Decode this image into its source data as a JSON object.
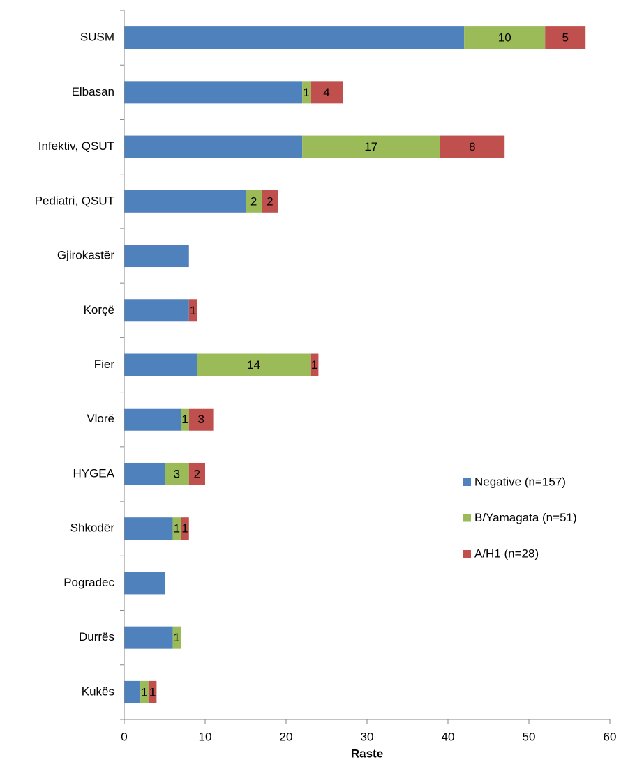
{
  "chart_data": {
    "type": "stacked_bar_horizontal",
    "x_label": "Raste",
    "categories": [
      "SUSM",
      "Elbasan",
      "Infektiv, QSUT",
      "Pediatri, QSUT",
      "Gjirokastër",
      "Korçë",
      "Fier",
      "Vlorë",
      "HYGEA",
      "Shkodër",
      "Pogradec",
      "Durrës",
      "Kukës"
    ],
    "series": [
      {
        "name": "Negative (n=157)",
        "color": "#4f81bd",
        "show_labels": false,
        "values": [
          42,
          22,
          22,
          15,
          8,
          8,
          9,
          7,
          5,
          6,
          5,
          6,
          2
        ]
      },
      {
        "name": "B/Yamagata (n=51)",
        "color": "#9bbb59",
        "show_labels": true,
        "values": [
          10,
          1,
          17,
          2,
          null,
          null,
          14,
          1,
          3,
          1,
          null,
          1,
          1
        ]
      },
      {
        "name": "A/H1 (n=28)",
        "color": "#c0504d",
        "show_labels": true,
        "values": [
          5,
          4,
          8,
          2,
          null,
          1,
          1,
          3,
          2,
          1,
          null,
          null,
          1
        ]
      }
    ],
    "xlim": [
      0,
      60
    ],
    "xticks": [
      0,
      10,
      20,
      30,
      40,
      50,
      60
    ],
    "legend": "right"
  }
}
